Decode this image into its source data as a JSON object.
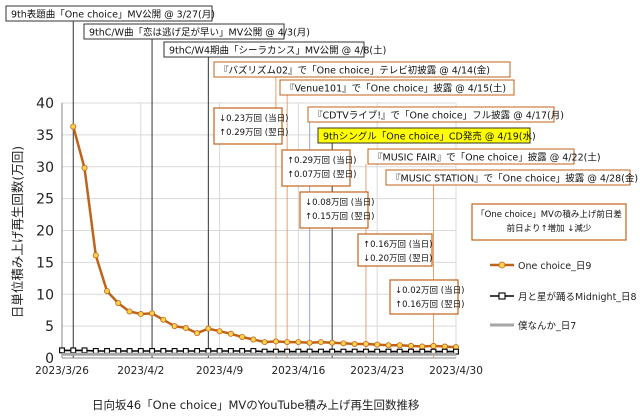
{
  "chart_data": {
    "type": "line",
    "title": "日向坂46「One choice」MVのYouTube積み上げ再生回数推移",
    "xlabel": "",
    "ylabel": "日単位積み上げ再生回数(万回)",
    "ylim": [
      0,
      40
    ],
    "yticks": [
      0,
      5,
      10,
      15,
      20,
      25,
      30,
      35,
      40
    ],
    "xlim": [
      "2023-03-26",
      "2023-04-30"
    ],
    "xticks": [
      "2023/3/26",
      "2023/4/2",
      "2023/4/9",
      "2023/4/16",
      "2023/4/23",
      "2023/4/30"
    ],
    "grid": true,
    "legend_position": "right",
    "series": [
      {
        "name": "One choice_日9",
        "color": "#c0631a",
        "marker": "circle-yellow",
        "points": [
          [
            "2023-03-27",
            36.3
          ],
          [
            "2023-03-28",
            29.8
          ],
          [
            "2023-03-29",
            16.1
          ],
          [
            "2023-03-30",
            10.5
          ],
          [
            "2023-03-31",
            8.6
          ],
          [
            "2023-04-01",
            7.3
          ],
          [
            "2023-04-02",
            6.9
          ],
          [
            "2023-04-03",
            7.0
          ],
          [
            "2023-04-04",
            6.0
          ],
          [
            "2023-04-05",
            5.0
          ],
          [
            "2023-04-06",
            4.7
          ],
          [
            "2023-04-07",
            3.9
          ],
          [
            "2023-04-08",
            4.6
          ],
          [
            "2023-04-09",
            4.2
          ],
          [
            "2023-04-10",
            3.8
          ],
          [
            "2023-04-11",
            3.3
          ],
          [
            "2023-04-12",
            2.9
          ],
          [
            "2023-04-13",
            2.5
          ],
          [
            "2023-04-14",
            2.6
          ],
          [
            "2023-04-15",
            2.5
          ],
          [
            "2023-04-16",
            2.5
          ],
          [
            "2023-04-17",
            2.4
          ],
          [
            "2023-04-18",
            2.5
          ],
          [
            "2023-04-19",
            2.4
          ],
          [
            "2023-04-20",
            2.3
          ],
          [
            "2023-04-21",
            2.2
          ],
          [
            "2023-04-22",
            2.2
          ],
          [
            "2023-04-23",
            2.1
          ],
          [
            "2023-04-24",
            2.0
          ],
          [
            "2023-04-25",
            2.0
          ],
          [
            "2023-04-26",
            1.9
          ],
          [
            "2023-04-27",
            1.8
          ],
          [
            "2023-04-28",
            1.9
          ],
          [
            "2023-04-29",
            1.8
          ],
          [
            "2023-04-30",
            1.7
          ]
        ]
      },
      {
        "name": "月と星が踊るMidnight_日8",
        "color": "#000000",
        "marker": "square-white",
        "points": [
          [
            "2023-03-26",
            1.2
          ],
          [
            "2023-03-27",
            1.2
          ],
          [
            "2023-03-28",
            1.2
          ],
          [
            "2023-03-29",
            1.1
          ],
          [
            "2023-03-30",
            1.1
          ],
          [
            "2023-03-31",
            1.1
          ],
          [
            "2023-04-01",
            1.1
          ],
          [
            "2023-04-02",
            1.1
          ],
          [
            "2023-04-03",
            1.1
          ],
          [
            "2023-04-04",
            1.1
          ],
          [
            "2023-04-05",
            1.1
          ],
          [
            "2023-04-06",
            1.1
          ],
          [
            "2023-04-07",
            1.1
          ],
          [
            "2023-04-08",
            1.1
          ],
          [
            "2023-04-09",
            1.1
          ],
          [
            "2023-04-10",
            1.1
          ],
          [
            "2023-04-11",
            1.1
          ],
          [
            "2023-04-12",
            1.1
          ],
          [
            "2023-04-13",
            1.0
          ],
          [
            "2023-04-14",
            1.0
          ],
          [
            "2023-04-15",
            1.0
          ],
          [
            "2023-04-16",
            1.0
          ],
          [
            "2023-04-17",
            1.0
          ],
          [
            "2023-04-18",
            1.0
          ],
          [
            "2023-04-19",
            1.0
          ],
          [
            "2023-04-20",
            1.0
          ],
          [
            "2023-04-21",
            1.0
          ],
          [
            "2023-04-22",
            1.0
          ],
          [
            "2023-04-23",
            1.0
          ],
          [
            "2023-04-24",
            1.0
          ],
          [
            "2023-04-25",
            1.0
          ],
          [
            "2023-04-26",
            1.0
          ],
          [
            "2023-04-27",
            1.0
          ],
          [
            "2023-04-28",
            1.0
          ],
          [
            "2023-04-29",
            1.0
          ],
          [
            "2023-04-30",
            1.0
          ]
        ]
      },
      {
        "name": "僕なんか_日7",
        "color": "#a6a6a6",
        "marker": "none",
        "points": [
          [
            "2023-03-26",
            0.6
          ],
          [
            "2023-03-30",
            0.6
          ],
          [
            "2023-04-05",
            0.6
          ],
          [
            "2023-04-10",
            0.6
          ],
          [
            "2023-04-15",
            0.6
          ],
          [
            "2023-04-20",
            0.6
          ],
          [
            "2023-04-25",
            0.6
          ],
          [
            "2023-04-30",
            0.6
          ]
        ]
      }
    ],
    "events": [
      {
        "label": "9th表題曲「One choice」MV公開 @ 3/27(月)",
        "date": "2023-03-27",
        "line_color": "#333333",
        "bg": "#ffffff",
        "border": "#333333"
      },
      {
        "label": "9thC/W曲「恋は逃げ足が早い」MV公開 @ 4/3(月)",
        "date": "2023-04-03",
        "line_color": "#333333",
        "bg": "#ffffff",
        "border": "#333333"
      },
      {
        "label": "9thC/W4期曲「シーラカンス」MV公開 @ 4/8(土)",
        "date": "2023-04-08",
        "line_color": "#333333",
        "bg": "#ffffff",
        "border": "#333333"
      },
      {
        "label": "『バズリズム02』で「One choice」テレビ初披露 @ 4/14(金)",
        "date": "2023-04-14",
        "line_color": "#e8a070",
        "bg": "#ffffff",
        "border": "#c0631a"
      },
      {
        "label": "『Venue101』で「One choice」披露 @ 4/15(土)",
        "date": "2023-04-15",
        "line_color": "#e8a070",
        "bg": "#ffffff",
        "border": "#c0631a"
      },
      {
        "label": "『CDTVライブ!』で「One choice」フル披露 @ 4/17(月)",
        "date": "2023-04-17",
        "line_color": "#8ea9db",
        "bg": "#ffffff",
        "border": "#c0631a"
      },
      {
        "label": "9thシングル「One choice」CD発売 @ 4/19(水)",
        "date": "2023-04-19",
        "line_color": "#333333",
        "bg": "#ffff00",
        "border": "#333333"
      },
      {
        "label": "『MUSIC FAIR』で「One choice」披露 @ 4/22(土)",
        "date": "2023-04-22",
        "line_color": "#e8a070",
        "bg": "#ffffff",
        "border": "#c0631a"
      },
      {
        "label": "『MUSIC STATION』で「One choice」披露 @ 4/28(金)",
        "date": "2023-04-28",
        "line_color": "#e8a070",
        "bg": "#ffffff",
        "border": "#c0631a"
      }
    ],
    "annotations": [
      {
        "lines": [
          "↓0.23万回 (当日)",
          "↑0.29万回 (翌日)"
        ]
      },
      {
        "lines": [
          "↑0.29万回 (当日)",
          "↑0.07万回 (翌日)"
        ]
      },
      {
        "lines": [
          "↓0.08万回 (当日)",
          "↑0.15万回 (翌日)"
        ]
      },
      {
        "lines": [
          "↑0.16万回 (当日)",
          "↓0.20万回 (翌日)"
        ]
      },
      {
        "lines": [
          "↓0.02万回 (当日)",
          "↑0.16万回 (翌日)"
        ]
      },
      {
        "lines": [
          "「One choice」MVの積み上げ前日差",
          "前日より↑増加 ↓減少"
        ]
      }
    ]
  }
}
